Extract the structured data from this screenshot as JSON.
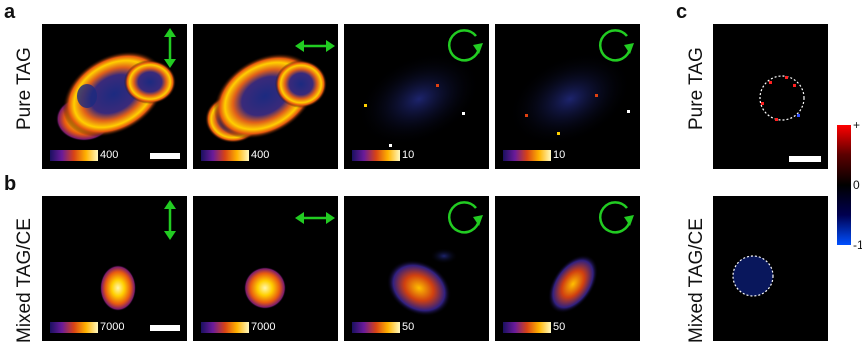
{
  "panels": {
    "a": "a",
    "b": "b",
    "c": "c"
  },
  "row_labels": {
    "pure": "Pure TAG",
    "mixed": "Mixed TAG/CE"
  },
  "row_a_colorbars": [
    "400",
    "400",
    "10",
    "10"
  ],
  "row_b_colorbars": [
    "7000",
    "7000",
    "50",
    "50"
  ],
  "side_colorbar": {
    "top": "+",
    "mid": "0",
    "bottom": "-1"
  },
  "colors": {
    "arrow": "#22cc22",
    "side_positive": "#ff0000",
    "side_negative": "#0050ff"
  },
  "icons": [
    "vertical-double-arrow-icon",
    "horizontal-double-arrow-icon",
    "circular-arrow-icon"
  ]
}
